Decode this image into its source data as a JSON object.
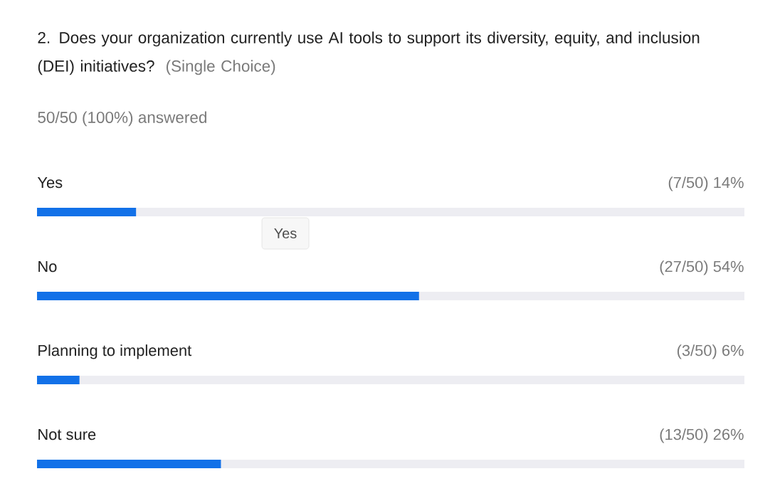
{
  "chart_data": {
    "type": "bar",
    "orientation": "horizontal",
    "title": "2. Does your organization currently use AI tools to support its diversity, equity, and inclusion (DEI) initiatives?",
    "subtitle": "50/50 (100%) answered",
    "annotations": [
      "(Single Choice)",
      "Yes"
    ],
    "categories": [
      "Yes",
      "No",
      "Planning to implement",
      "Not sure"
    ],
    "values": [
      14,
      54,
      6,
      26
    ],
    "value_labels": [
      "(7/50) 14%",
      "(27/50) 54%",
      "(3/50) 6%",
      "(13/50) 26%"
    ],
    "color": "#1271e8",
    "xlim": [
      0,
      100
    ]
  }
}
